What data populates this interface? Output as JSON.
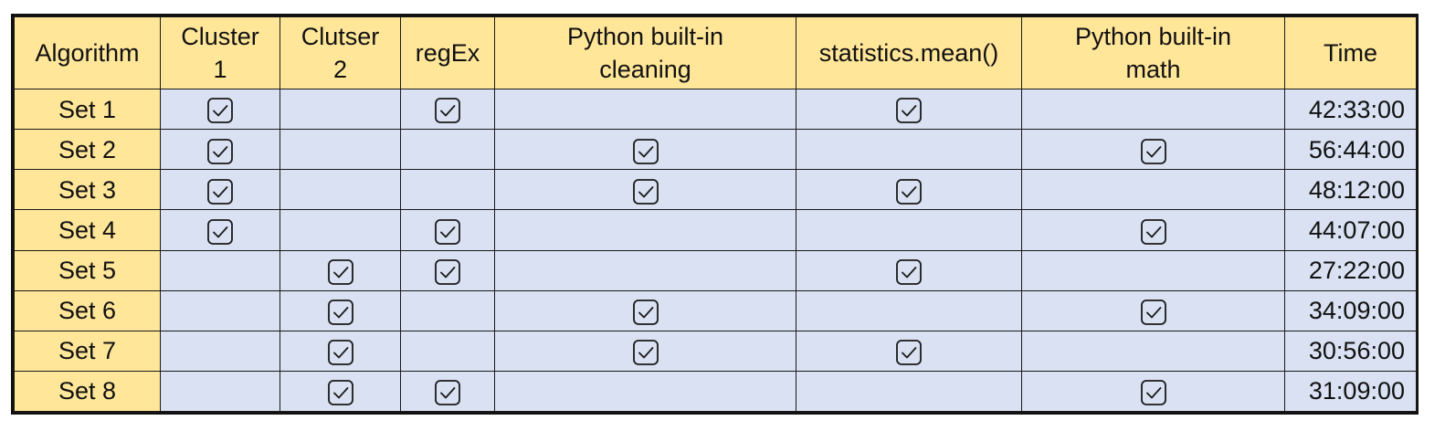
{
  "table": {
    "headers": [
      {
        "line1": "",
        "line2": "Algorithm"
      },
      {
        "line1": "Cluster",
        "line2": "1"
      },
      {
        "line1": "Clutser",
        "line2": "2"
      },
      {
        "line1": "",
        "line2": "regEx"
      },
      {
        "line1": "Python built-in",
        "line2": "cleaning"
      },
      {
        "line1": "",
        "line2": "statistics.mean()"
      },
      {
        "line1": "Python built-in",
        "line2": "math"
      },
      {
        "line1": "",
        "line2": "Time"
      }
    ],
    "rows": [
      {
        "name": "Set 1",
        "checks": [
          true,
          false,
          true,
          false,
          true,
          false
        ],
        "time": "42:33:00"
      },
      {
        "name": "Set 2",
        "checks": [
          true,
          false,
          false,
          true,
          false,
          true
        ],
        "time": "56:44:00"
      },
      {
        "name": "Set 3",
        "checks": [
          true,
          false,
          false,
          true,
          true,
          false
        ],
        "time": "48:12:00"
      },
      {
        "name": "Set 4",
        "checks": [
          true,
          false,
          true,
          false,
          false,
          true
        ],
        "time": "44:07:00"
      },
      {
        "name": "Set 5",
        "checks": [
          false,
          true,
          true,
          false,
          true,
          false
        ],
        "time": "27:22:00"
      },
      {
        "name": "Set 6",
        "checks": [
          false,
          true,
          false,
          true,
          false,
          true
        ],
        "time": "34:09:00"
      },
      {
        "name": "Set 7",
        "checks": [
          false,
          true,
          false,
          true,
          true,
          false
        ],
        "time": "30:56:00"
      },
      {
        "name": "Set 8",
        "checks": [
          false,
          true,
          true,
          false,
          false,
          true
        ],
        "time": "31:09:00"
      }
    ]
  },
  "colors": {
    "header_bg": "#ffe699",
    "cell_bg": "#d9e1f2",
    "border": "#111111"
  },
  "icons": {
    "check": "checked-box-icon"
  }
}
